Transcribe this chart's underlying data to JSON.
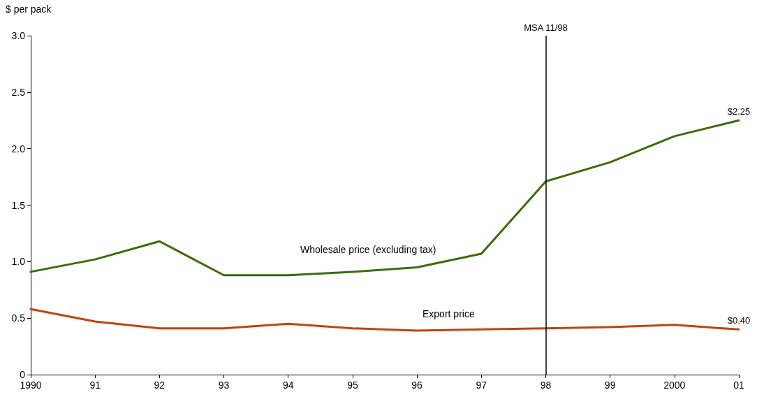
{
  "chart_data": {
    "type": "line",
    "ylabel": "$ per pack",
    "categories": [
      "1990",
      "91",
      "92",
      "93",
      "94",
      "95",
      "96",
      "97",
      "98",
      "99",
      "2000",
      "01"
    ],
    "series": [
      {
        "name": "Wholesale price (excluding tax)",
        "color": "#3d6a0e",
        "values": [
          0.91,
          1.02,
          1.18,
          0.88,
          0.88,
          0.91,
          0.95,
          1.07,
          1.71,
          1.88,
          2.11,
          2.25
        ]
      },
      {
        "name": "Export price",
        "color": "#c0440e",
        "values": [
          0.58,
          0.47,
          0.41,
          0.41,
          0.45,
          0.41,
          0.39,
          0.4,
          0.41,
          0.42,
          0.44,
          0.4
        ]
      }
    ],
    "ylim": [
      0,
      3
    ],
    "yticks": [
      0,
      0.5,
      {
        "value": 1,
        "label": "1.0"
      },
      1.5,
      {
        "value": 2,
        "label": "2.0"
      },
      2.5,
      {
        "value": 3,
        "label": "3.0"
      }
    ],
    "ref_lines": [
      {
        "axis": "x",
        "value": "98",
        "label": "MSA 11/98",
        "color": "#000000"
      }
    ],
    "annotations": [
      {
        "text": "$2.25",
        "x": "01",
        "y": 2.25
      },
      {
        "text": "$0.40",
        "x": "01",
        "y": 0.4
      }
    ],
    "grid": false,
    "legend": false,
    "marker": "none",
    "line_style": "solid"
  }
}
